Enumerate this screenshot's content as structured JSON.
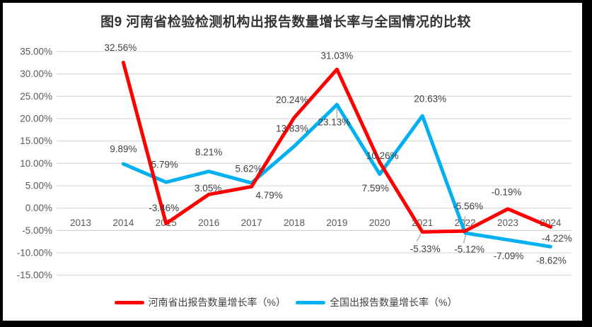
{
  "chart_data": {
    "type": "line",
    "title": "图9  河南省检验检测机构出报告数量增长率与全国情况的比较",
    "categories": [
      "2013",
      "2014",
      "2015",
      "2016",
      "2017",
      "2018",
      "2019",
      "2020",
      "2021",
      "2022",
      "2023",
      "2024"
    ],
    "series": [
      {
        "name": "河南省出报告数量增长率（%）",
        "color": "#ff0000",
        "values": [
          null,
          32.56,
          -3.46,
          3.05,
          4.79,
          20.24,
          31.03,
          10.26,
          -5.33,
          -5.12,
          -0.19,
          -4.22
        ]
      },
      {
        "name": "全国出报告数量增长率（%）",
        "color": "#00b0f0",
        "values": [
          null,
          9.89,
          5.79,
          8.21,
          5.62,
          13.83,
          23.13,
          7.59,
          20.63,
          -5.56,
          -7.09,
          -8.62
        ]
      }
    ],
    "ylim": [
      -15,
      35
    ],
    "y_tick_step": 5,
    "y_ticks": [
      "35.00%",
      "30.00%",
      "25.00%",
      "20.00%",
      "15.00%",
      "10.00%",
      "5.00%",
      "0.00%",
      "-5.00%",
      "-10.00%",
      "-15.00%"
    ],
    "grid": true,
    "data_labels": true,
    "legend_position": "bottom"
  },
  "colors": {
    "grid": "#d9d9d9",
    "axis_text": "#595959",
    "label_text": "#404040",
    "leader": "#a6a6a6",
    "frame": "#000000",
    "background": "#ffffff"
  }
}
